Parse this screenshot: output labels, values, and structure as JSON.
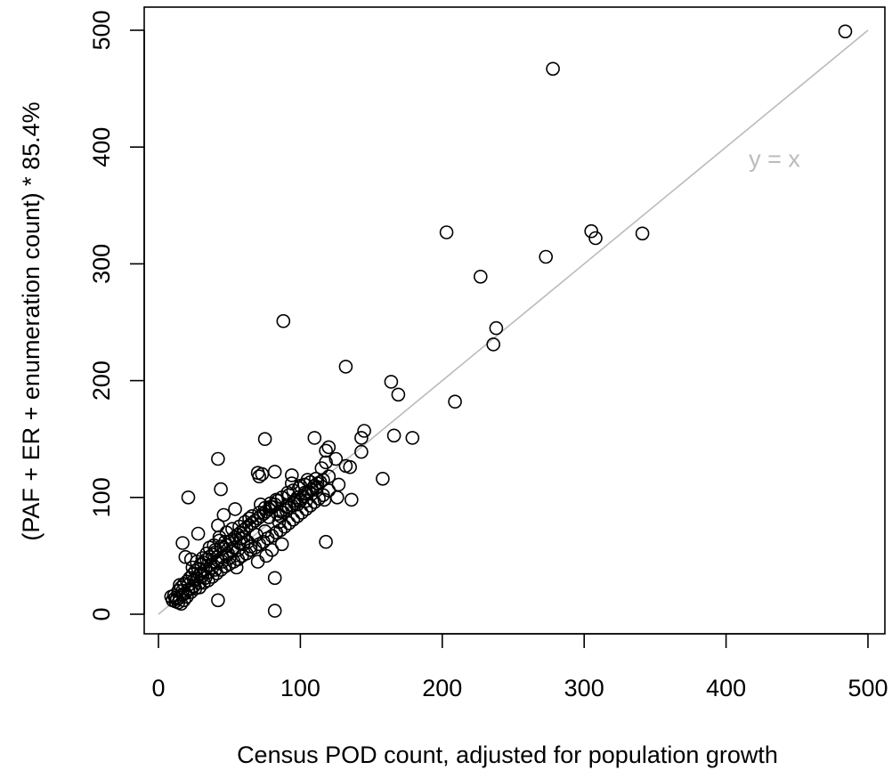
{
  "chart_data": {
    "type": "scatter",
    "title": "",
    "xlabel": "Census POD count, adjusted for population growth",
    "ylabel": "(PAF + ER + enumeration count) * 85.4%",
    "xlim": [
      -10,
      512
    ],
    "ylim": [
      -17,
      520
    ],
    "x_ticks": [
      0,
      100,
      200,
      300,
      400,
      500
    ],
    "y_ticks": [
      0,
      100,
      200,
      300,
      400,
      500
    ],
    "grid": false,
    "legend": "none",
    "reference_line": {
      "label": "y = x",
      "from": [
        0,
        0
      ],
      "to": [
        500,
        500
      ],
      "label_at": [
        416,
        383
      ],
      "color": "#bbbbbb"
    },
    "series": [
      {
        "marker": "open-circle",
        "color": "#000000",
        "points": [
          [
            484,
            499
          ],
          [
            278,
            467
          ],
          [
            203,
            327
          ],
          [
            305,
            328
          ],
          [
            308,
            322
          ],
          [
            341,
            326
          ],
          [
            273,
            306
          ],
          [
            227,
            289
          ],
          [
            238,
            245
          ],
          [
            236,
            231
          ],
          [
            88,
            251
          ],
          [
            132,
            212
          ],
          [
            164,
            199
          ],
          [
            169,
            188
          ],
          [
            209,
            182
          ],
          [
            166,
            153
          ],
          [
            179,
            151
          ],
          [
            145,
            157
          ],
          [
            143,
            151
          ],
          [
            143,
            139
          ],
          [
            158,
            116
          ],
          [
            136,
            98
          ],
          [
            110,
            151
          ],
          [
            120,
            143
          ],
          [
            118,
            140
          ],
          [
            75,
            150
          ],
          [
            42,
            133
          ],
          [
            70,
            121
          ],
          [
            73,
            120
          ],
          [
            71,
            118
          ],
          [
            82,
            122
          ],
          [
            94,
            119
          ],
          [
            94,
            112
          ],
          [
            100,
            110
          ],
          [
            105,
            115
          ],
          [
            115,
            125
          ],
          [
            118,
            130
          ],
          [
            125,
            133
          ],
          [
            132,
            127
          ],
          [
            135,
            126
          ],
          [
            120,
            118
          ],
          [
            127,
            111
          ],
          [
            126,
            100
          ],
          [
            120,
            106
          ],
          [
            117,
            98
          ],
          [
            118,
            62
          ],
          [
            87,
            60
          ],
          [
            82,
            31
          ],
          [
            82,
            3
          ],
          [
            21,
            100
          ],
          [
            44,
            107
          ],
          [
            28,
            69
          ],
          [
            46,
            85
          ],
          [
            54,
            90
          ],
          [
            17,
            61
          ],
          [
            19,
            49
          ],
          [
            23,
            47
          ],
          [
            30,
            43
          ],
          [
            36,
            57
          ],
          [
            42,
            76
          ],
          [
            43,
            63
          ],
          [
            40,
            55
          ],
          [
            47,
            62
          ],
          [
            58,
            65
          ],
          [
            64,
            82
          ],
          [
            72,
            94
          ],
          [
            79,
            92
          ],
          [
            84,
            97
          ],
          [
            90,
            92
          ],
          [
            92,
            102
          ],
          [
            98,
            100
          ],
          [
            104,
            97
          ],
          [
            108,
            103
          ],
          [
            111,
            108
          ],
          [
            112,
            109
          ],
          [
            103,
            104
          ],
          [
            96,
            97
          ],
          [
            85,
            79
          ],
          [
            86,
            88
          ],
          [
            78,
            83
          ],
          [
            75,
            71
          ],
          [
            69,
            68
          ],
          [
            63,
            62
          ],
          [
            60,
            60
          ],
          [
            56,
            55
          ],
          [
            52,
            54
          ],
          [
            50,
            48
          ],
          [
            48,
            50
          ],
          [
            45,
            45
          ],
          [
            42,
            46
          ],
          [
            40,
            38
          ],
          [
            38,
            40
          ],
          [
            35,
            36
          ],
          [
            33,
            31
          ],
          [
            31,
            33
          ],
          [
            29,
            27
          ],
          [
            27,
            30
          ],
          [
            25,
            24
          ],
          [
            23,
            22
          ],
          [
            21,
            21
          ],
          [
            19,
            18
          ],
          [
            17,
            17
          ],
          [
            15,
            14
          ],
          [
            13,
            13
          ],
          [
            12,
            11
          ],
          [
            11,
            16
          ],
          [
            14,
            20
          ],
          [
            16,
            23
          ],
          [
            18,
            26
          ],
          [
            20,
            28
          ],
          [
            22,
            31
          ],
          [
            24,
            34
          ],
          [
            26,
            37
          ],
          [
            28,
            39
          ],
          [
            30,
            35
          ],
          [
            32,
            44
          ],
          [
            34,
            47
          ],
          [
            36,
            49
          ],
          [
            38,
            51
          ],
          [
            40,
            53
          ],
          [
            44,
            58
          ],
          [
            46,
            57
          ],
          [
            48,
            59
          ],
          [
            50,
            62
          ],
          [
            52,
            64
          ],
          [
            54,
            66
          ],
          [
            56,
            68
          ],
          [
            58,
            70
          ],
          [
            60,
            72
          ],
          [
            62,
            74
          ],
          [
            64,
            76
          ],
          [
            66,
            78
          ],
          [
            68,
            80
          ],
          [
            70,
            82
          ],
          [
            72,
            84
          ],
          [
            74,
            86
          ],
          [
            76,
            88
          ],
          [
            78,
            90
          ],
          [
            80,
            92
          ],
          [
            82,
            94
          ],
          [
            84,
            86
          ],
          [
            86,
            84
          ],
          [
            88,
            87
          ],
          [
            90,
            89
          ],
          [
            92,
            91
          ],
          [
            94,
            93
          ],
          [
            96,
            95
          ],
          [
            98,
            94
          ],
          [
            100,
            97
          ],
          [
            102,
            101
          ],
          [
            104,
            103
          ],
          [
            106,
            105
          ],
          [
            108,
            107
          ],
          [
            110,
            110
          ],
          [
            112,
            112
          ],
          [
            114,
            113
          ],
          [
            116,
            115
          ],
          [
            23,
            19
          ],
          [
            26,
            22
          ],
          [
            29,
            23
          ],
          [
            32,
            27
          ],
          [
            35,
            29
          ],
          [
            38,
            32
          ],
          [
            41,
            35
          ],
          [
            44,
            38
          ],
          [
            47,
            41
          ],
          [
            50,
            43
          ],
          [
            53,
            45
          ],
          [
            56,
            47
          ],
          [
            59,
            50
          ],
          [
            62,
            52
          ],
          [
            65,
            55
          ],
          [
            68,
            57
          ],
          [
            71,
            60
          ],
          [
            74,
            62
          ],
          [
            77,
            65
          ],
          [
            80,
            67
          ],
          [
            83,
            70
          ],
          [
            86,
            72
          ],
          [
            89,
            75
          ],
          [
            92,
            78
          ],
          [
            95,
            81
          ],
          [
            98,
            84
          ],
          [
            101,
            87
          ],
          [
            104,
            90
          ],
          [
            107,
            93
          ],
          [
            110,
            96
          ],
          [
            113,
            99
          ],
          [
            116,
            102
          ],
          [
            14,
            10
          ],
          [
            16,
            9
          ],
          [
            18,
            12
          ],
          [
            20,
            15
          ],
          [
            42,
            12
          ],
          [
            55,
            40
          ],
          [
            70,
            45
          ],
          [
            76,
            50
          ],
          [
            80,
            55
          ],
          [
            65,
            58
          ],
          [
            60,
            66
          ],
          [
            57,
            61
          ],
          [
            53,
            57
          ],
          [
            49,
            52
          ],
          [
            45,
            49
          ],
          [
            41,
            44
          ],
          [
            37,
            42
          ],
          [
            33,
            38
          ],
          [
            29,
            34
          ],
          [
            25,
            29
          ],
          [
            21,
            25
          ],
          [
            17,
            20
          ],
          [
            12,
            14
          ],
          [
            10,
            12
          ],
          [
            9,
            15
          ],
          [
            15,
            25
          ],
          [
            24,
            40
          ],
          [
            27,
            45
          ],
          [
            31,
            48
          ],
          [
            34,
            52
          ],
          [
            39,
            59
          ],
          [
            43,
            66
          ],
          [
            48,
            70
          ],
          [
            52,
            73
          ],
          [
            57,
            75
          ],
          [
            61,
            79
          ],
          [
            66,
            84
          ],
          [
            71,
            87
          ],
          [
            75,
            91
          ],
          [
            79,
            95
          ],
          [
            83,
            98
          ],
          [
            87,
            100
          ],
          [
            91,
            104
          ],
          [
            95,
            106
          ],
          [
            99,
            108
          ],
          [
            103,
            111
          ],
          [
            107,
            113
          ],
          [
            111,
            116
          ]
        ]
      }
    ]
  }
}
